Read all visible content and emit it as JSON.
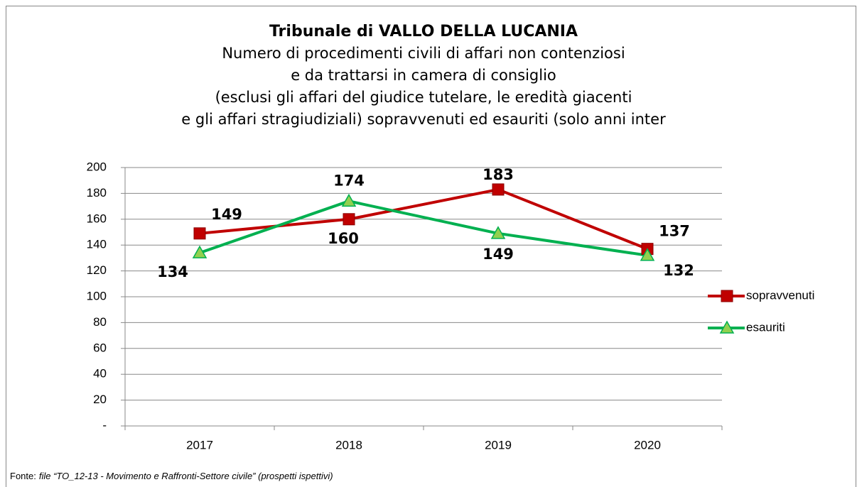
{
  "chart_data": {
    "type": "line",
    "title": "Tribunale di VALLO DELLA LUCANIA",
    "subtitle": [
      "Numero di procedimenti civili di affari non contenziosi",
      "e da trattarsi in camera di consiglio",
      "(esclusi gli affari del giudice tutelare, le eredità giacenti",
      "e gli affari stragiudiziali) sopravvenuti ed esauriti (solo anni inter"
    ],
    "categories": [
      "2017",
      "2018",
      "2019",
      "2020"
    ],
    "series": [
      {
        "name": "sopravvenuti",
        "color": "#c00000",
        "values": [
          149,
          160,
          183,
          137
        ]
      },
      {
        "name": "esauriti",
        "color": "#00b050",
        "values": [
          134,
          174,
          149,
          132
        ]
      }
    ],
    "ylim": [
      0,
      200
    ],
    "yticks": [
      {
        "value": 0,
        "label": "-"
      },
      20,
      40,
      60,
      80,
      100,
      120,
      140,
      160,
      180,
      200
    ],
    "grid": true,
    "legend": "right",
    "source_label": "Fonte:",
    "source": "file “TO_12-13 - Movimento e Raffronti-Settore civile” (prospetti ispettivi)"
  }
}
